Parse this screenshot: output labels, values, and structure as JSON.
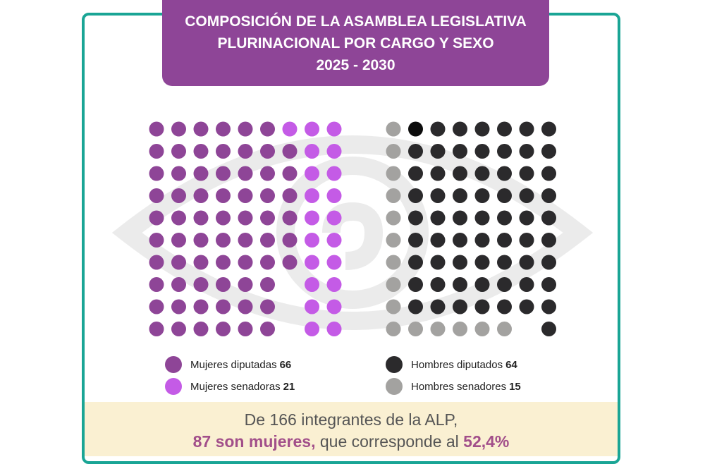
{
  "title": {
    "line1": "COMPOSICIÓN DE LA ASAMBLEA LEGISLATIVA",
    "line2": "PLURINACIONAL POR CARGO Y SEXO",
    "line3": "2025 - 2030"
  },
  "chart_data": {
    "type": "waffle",
    "title": "COMPOSICIÓN DE LA ASAMBLEA LEGISLATIVA PLURINACIONAL POR CARGO Y SEXO 2025 - 2030",
    "total": 166,
    "series": [
      {
        "name": "Mujeres diputadas",
        "value": 66,
        "color": "#8e4597",
        "group": "mujeres"
      },
      {
        "name": "Mujeres senadoras",
        "value": 21,
        "color": "#c45be6",
        "group": "mujeres"
      },
      {
        "name": "Hombres diputados",
        "value": 64,
        "color": "#2b2a2c",
        "group": "hombres"
      },
      {
        "name": "Hombres senadores",
        "value": 15,
        "color": "#a3a2a0",
        "group": "hombres"
      }
    ]
  },
  "legend": [
    {
      "label": "Mujeres diputadas",
      "value": "66",
      "color": "#8e4597"
    },
    {
      "label": "Mujeres senadoras",
      "value": "21",
      "color": "#c45be6"
    },
    {
      "label": "Hombres diputados",
      "value": "64",
      "color": "#2b2a2c"
    },
    {
      "label": "Hombres senadores",
      "value": "15",
      "color": "#a3a2a0"
    }
  ],
  "footer": {
    "line1": "De 166 integrantes de la ALP,",
    "highlight1": "87 son mujeres,",
    "middle": " que corresponde al ",
    "highlight2": "52,4%"
  },
  "colors": {
    "frame": "#1aa595",
    "title_bg": "#8e4597",
    "footer_bg": "#faf0d2",
    "highlight": "#a24f8a"
  }
}
